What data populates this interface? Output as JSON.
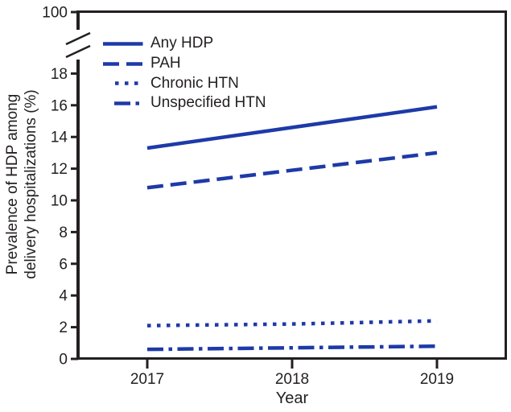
{
  "figure": {
    "y_axis_title_line1": "Prevalence of HDP among",
    "y_axis_title_line2": "delivery hospitalizations (%)",
    "x_axis_title": "Year"
  },
  "axes": {
    "y_top_label": "100",
    "y_ticks": [
      "18",
      "16",
      "14",
      "12",
      "10",
      "8",
      "6",
      "4",
      "2",
      "0"
    ],
    "x_ticks": [
      "2017",
      "2018",
      "2019"
    ]
  },
  "colors": {
    "series_line": "#1e3aa8",
    "axis": "#231f20",
    "background": "#ffffff"
  },
  "chart_data": {
    "type": "line",
    "title": "",
    "xlabel": "Year",
    "ylabel": "Prevalence of HDP among delivery hospitalizations (%)",
    "x": [
      2017,
      2018,
      2019
    ],
    "ylim_lower_section": [
      0,
      19
    ],
    "y_axis_break": true,
    "y_axis_break_upper_label": 100,
    "grid": false,
    "legend_position": "top-left-inside",
    "series": [
      {
        "name": "Any HDP",
        "style": "solid",
        "values": [
          13.3,
          14.6,
          15.9
        ]
      },
      {
        "name": "PAH",
        "style": "dashed",
        "values": [
          10.8,
          11.9,
          13.0
        ]
      },
      {
        "name": "Chronic HTN",
        "style": "dotted",
        "values": [
          2.1,
          2.2,
          2.4
        ]
      },
      {
        "name": "Unspecified HTN",
        "style": "dashdot",
        "values": [
          0.6,
          0.7,
          0.8
        ]
      }
    ]
  }
}
